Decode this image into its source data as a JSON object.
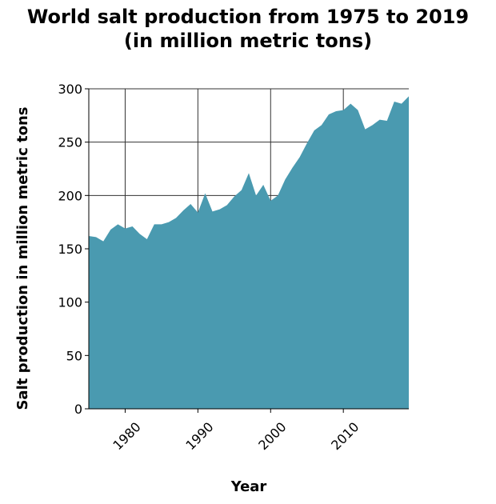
{
  "chart_data": {
    "type": "area",
    "title_line1": "World salt production from 1975 to 2019",
    "title_line2": "(in million metric tons)",
    "xlabel": "Year",
    "ylabel": "Salt production in million metric tons",
    "xlim": [
      1975,
      2019
    ],
    "ylim": [
      0,
      300
    ],
    "xticks": [
      1980,
      1990,
      2000,
      2010
    ],
    "yticks": [
      0,
      50,
      100,
      150,
      200,
      250,
      300
    ],
    "grid": true,
    "color": "#4a9ab0",
    "x": [
      1975,
      1976,
      1977,
      1978,
      1979,
      1980,
      1981,
      1982,
      1983,
      1984,
      1985,
      1986,
      1987,
      1988,
      1989,
      1990,
      1991,
      1992,
      1993,
      1994,
      1995,
      1996,
      1997,
      1998,
      1999,
      2000,
      2001,
      2002,
      2003,
      2004,
      2005,
      2006,
      2007,
      2008,
      2009,
      2010,
      2011,
      2012,
      2013,
      2014,
      2015,
      2016,
      2017,
      2018,
      2019
    ],
    "values": [
      162,
      161,
      157,
      168,
      173,
      169,
      171,
      164,
      159,
      173,
      173,
      175,
      179,
      186,
      192,
      184,
      202,
      185,
      187,
      191,
      199,
      205,
      221,
      200,
      210,
      195,
      200,
      215,
      226,
      236,
      249,
      261,
      266,
      276,
      279,
      280,
      286,
      280,
      262,
      266,
      271,
      270,
      288,
      286,
      293
    ]
  }
}
